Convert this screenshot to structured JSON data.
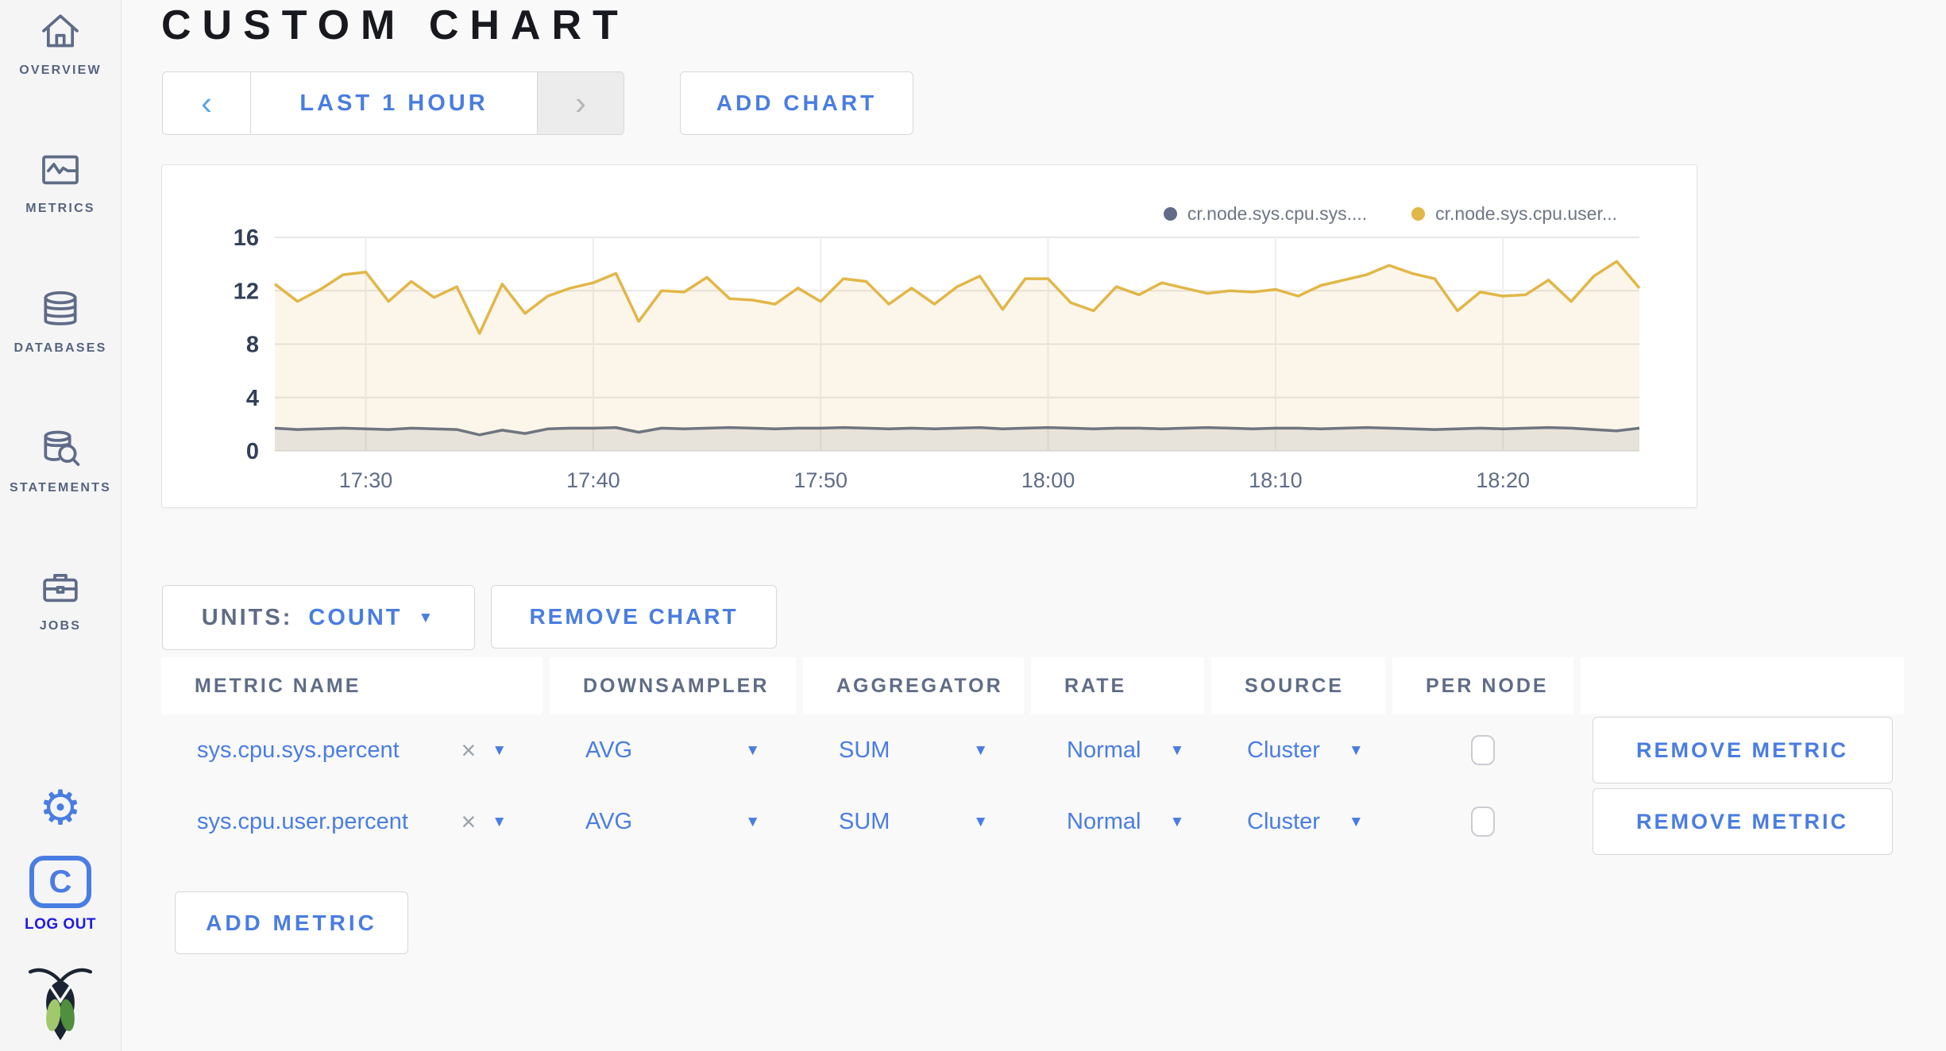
{
  "sidebar": {
    "items": [
      {
        "label": "OVERVIEW",
        "icon": "home-icon"
      },
      {
        "label": "METRICS",
        "icon": "metrics-icon"
      },
      {
        "label": "DATABASES",
        "icon": "database-icon"
      },
      {
        "label": "STATEMENTS",
        "icon": "statements-icon"
      },
      {
        "label": "JOBS",
        "icon": "jobs-icon"
      }
    ],
    "settings_icon": "⚙",
    "logout_badge": "C",
    "logout_label": "LOG OUT"
  },
  "header": {
    "title": "CUSTOM CHART"
  },
  "toolbar": {
    "prev_icon": "‹",
    "time_range_label": "LAST 1 HOUR",
    "next_icon": "›",
    "add_chart_label": "ADD CHART"
  },
  "chart_data": {
    "type": "line",
    "title": "",
    "xlabel": "",
    "ylabel": "",
    "ylim": [
      0,
      16
    ],
    "y_ticks": [
      0,
      4,
      8,
      12,
      16
    ],
    "x_ticks": [
      "17:30",
      "17:40",
      "17:50",
      "18:00",
      "18:10",
      "18:20"
    ],
    "x_tick_minutes": [
      4,
      14,
      24,
      34,
      44,
      54
    ],
    "x_range_minutes": [
      0,
      60
    ],
    "grid": true,
    "legend_position": "top-right",
    "series": [
      {
        "name": "cr.node.sys.cpu.sys....",
        "color": "#606c88",
        "fill": "rgba(96,108,136,0.14)",
        "values": [
          1.7,
          1.6,
          1.65,
          1.7,
          1.65,
          1.6,
          1.7,
          1.65,
          1.6,
          1.2,
          1.55,
          1.3,
          1.65,
          1.7,
          1.7,
          1.75,
          1.4,
          1.7,
          1.65,
          1.7,
          1.75,
          1.7,
          1.65,
          1.7,
          1.7,
          1.75,
          1.7,
          1.65,
          1.7,
          1.65,
          1.7,
          1.75,
          1.65,
          1.7,
          1.75,
          1.7,
          1.65,
          1.7,
          1.7,
          1.65,
          1.7,
          1.75,
          1.7,
          1.65,
          1.7,
          1.7,
          1.65,
          1.7,
          1.75,
          1.7,
          1.65,
          1.6,
          1.65,
          1.7,
          1.65,
          1.7,
          1.75,
          1.7,
          1.6,
          1.5,
          1.7
        ]
      },
      {
        "name": "cr.node.sys.cpu.user...",
        "color": "#e2b648",
        "fill": "rgba(226,182,72,0.12)",
        "values": [
          12.5,
          11.2,
          12.1,
          13.2,
          13.4,
          11.2,
          12.7,
          11.5,
          12.3,
          8.8,
          12.5,
          10.3,
          11.6,
          12.2,
          12.6,
          13.3,
          9.7,
          12.0,
          11.9,
          13.0,
          11.4,
          11.3,
          11.0,
          12.2,
          11.2,
          12.9,
          12.7,
          11.0,
          12.2,
          11.0,
          12.3,
          13.1,
          10.6,
          12.9,
          12.9,
          11.1,
          10.5,
          12.3,
          11.7,
          12.6,
          12.2,
          11.8,
          12.0,
          11.9,
          12.1,
          11.6,
          12.4,
          12.8,
          13.2,
          13.9,
          13.3,
          12.9,
          10.5,
          11.9,
          11.6,
          11.7,
          12.8,
          11.2,
          13.1,
          14.2,
          12.2
        ]
      }
    ]
  },
  "chart_controls": {
    "units_label": "UNITS:",
    "units_value": "COUNT",
    "remove_chart_label": "REMOVE CHART"
  },
  "metrics_table": {
    "columns": [
      "METRIC NAME",
      "DOWNSAMPLER",
      "AGGREGATOR",
      "RATE",
      "SOURCE",
      "PER NODE",
      ""
    ],
    "rows": [
      {
        "metric_name": "sys.cpu.sys.percent",
        "downsampler": "AVG",
        "aggregator": "SUM",
        "rate": "Normal",
        "source": "Cluster",
        "per_node_checked": false,
        "remove_label": "REMOVE METRIC"
      },
      {
        "metric_name": "sys.cpu.user.percent",
        "downsampler": "AVG",
        "aggregator": "SUM",
        "rate": "Normal",
        "source": "Cluster",
        "per_node_checked": false,
        "remove_label": "REMOVE METRIC"
      }
    ],
    "add_metric_label": "ADD METRIC"
  },
  "colors": {
    "accent_blue": "#4a7de2",
    "logout_blue": "#1f1ae4",
    "slate": "#5f6c87",
    "series_sys": "#606c88",
    "series_user": "#e2b648",
    "caret_gray": "#9aa1ab"
  }
}
